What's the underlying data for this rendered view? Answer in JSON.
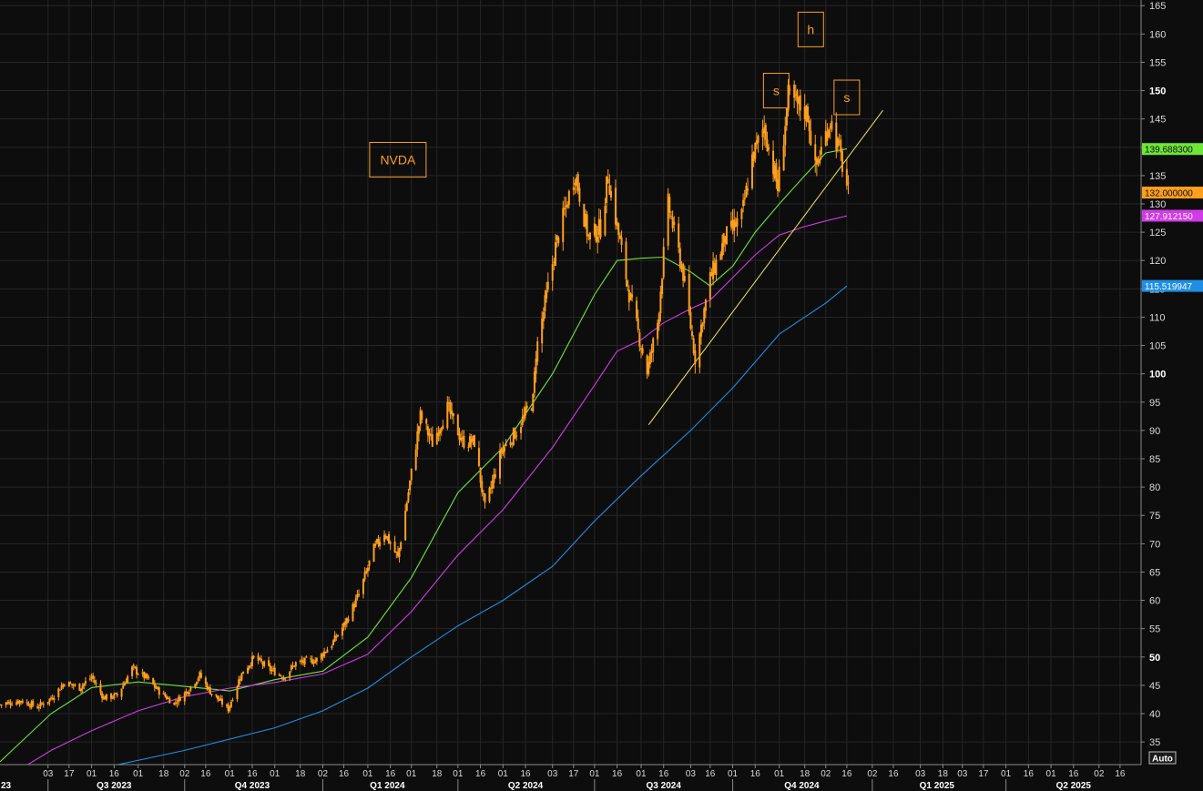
{
  "chart_data": {
    "type": "candlestick",
    "symbol_label": "NVDA",
    "colors": {
      "background": "#0d0d0d",
      "grid": "#262626",
      "candles": "#ff9f1c",
      "ma_short": "#6ee636",
      "ma_mid": "#d23be8",
      "ma_long": "#1f8fe6",
      "trendline": "#f2e85a",
      "annotations": "#ff9f1c"
    },
    "y_axis": {
      "range": [
        31,
        166
      ],
      "ticks": [
        "165",
        "160",
        "155",
        "150",
        "145",
        "140",
        "135",
        "130",
        "125",
        "120",
        "115",
        "110",
        "105",
        "100",
        "95",
        "90",
        "85",
        "80",
        "75",
        "70",
        "65",
        "60",
        "55",
        "50",
        "45",
        "40",
        "35"
      ],
      "bold_ticks": [
        "150",
        "100",
        "50"
      ]
    },
    "x_axis": {
      "range": [
        "2023-06-01",
        "2025-06-30"
      ],
      "tick_labels": [
        {
          "label": "03",
          "date": "2023-07-03"
        },
        {
          "label": "17",
          "date": "2023-07-17"
        },
        {
          "label": "01",
          "date": "2023-08-01"
        },
        {
          "label": "16",
          "date": "2023-08-16"
        },
        {
          "label": "01",
          "date": "2023-09-01"
        },
        {
          "label": "18",
          "date": "2023-09-18"
        },
        {
          "label": "02",
          "date": "2023-10-02"
        },
        {
          "label": "16",
          "date": "2023-10-16"
        },
        {
          "label": "01",
          "date": "2023-11-01"
        },
        {
          "label": "16",
          "date": "2023-11-16"
        },
        {
          "label": "01",
          "date": "2023-12-01"
        },
        {
          "label": "18",
          "date": "2023-12-18"
        },
        {
          "label": "02",
          "date": "2024-01-02"
        },
        {
          "label": "16",
          "date": "2024-01-16"
        },
        {
          "label": "01",
          "date": "2024-02-01"
        },
        {
          "label": "16",
          "date": "2024-02-16"
        },
        {
          "label": "01",
          "date": "2024-03-01"
        },
        {
          "label": "18",
          "date": "2024-03-18"
        },
        {
          "label": "01",
          "date": "2024-04-01"
        },
        {
          "label": "16",
          "date": "2024-04-16"
        },
        {
          "label": "01",
          "date": "2024-05-01"
        },
        {
          "label": "16",
          "date": "2024-05-16"
        },
        {
          "label": "03",
          "date": "2024-06-03"
        },
        {
          "label": "17",
          "date": "2024-06-17"
        },
        {
          "label": "01",
          "date": "2024-07-01"
        },
        {
          "label": "16",
          "date": "2024-07-16"
        },
        {
          "label": "01",
          "date": "2024-08-01"
        },
        {
          "label": "16",
          "date": "2024-08-16"
        },
        {
          "label": "03",
          "date": "2024-09-03"
        },
        {
          "label": "16",
          "date": "2024-09-16"
        },
        {
          "label": "01",
          "date": "2024-10-01"
        },
        {
          "label": "16",
          "date": "2024-10-16"
        },
        {
          "label": "01",
          "date": "2024-11-01"
        },
        {
          "label": "18",
          "date": "2024-11-18"
        },
        {
          "label": "02",
          "date": "2024-12-02"
        },
        {
          "label": "16",
          "date": "2024-12-16"
        },
        {
          "label": "02",
          "date": "2025-01-02"
        },
        {
          "label": "16",
          "date": "2025-01-16"
        },
        {
          "label": "03",
          "date": "2025-02-03"
        },
        {
          "label": "18",
          "date": "2025-02-18"
        },
        {
          "label": "03",
          "date": "2025-03-03"
        },
        {
          "label": "17",
          "date": "2025-03-17"
        },
        {
          "label": "01",
          "date": "2025-04-01"
        },
        {
          "label": "16",
          "date": "2025-04-16"
        },
        {
          "label": "01",
          "date": "2025-05-01"
        },
        {
          "label": "16",
          "date": "2025-05-16"
        },
        {
          "label": "02",
          "date": "2025-06-02"
        },
        {
          "label": "16",
          "date": "2025-06-16"
        }
      ],
      "quarter_labels": [
        {
          "label": "Q3 2023",
          "date": "2023-08-16"
        },
        {
          "label": "Q4 2023",
          "date": "2023-11-16"
        },
        {
          "label": "Q1 2024",
          "date": "2024-02-14"
        },
        {
          "label": "Q2 2024",
          "date": "2024-05-16"
        },
        {
          "label": "Q3 2024",
          "date": "2024-08-16"
        },
        {
          "label": "Q4 2024",
          "date": "2024-11-16"
        },
        {
          "label": "Q1 2025",
          "date": "2025-02-14"
        },
        {
          "label": "Q2 2025",
          "date": "2025-05-16"
        }
      ],
      "left_clipped_label": "23"
    },
    "price_path": [
      [
        "2023-06-01",
        41.6
      ],
      [
        "2023-06-15",
        42.3
      ],
      [
        "2023-06-26",
        41.2
      ],
      [
        "2023-07-05",
        42.7
      ],
      [
        "2023-07-14",
        45.5
      ],
      [
        "2023-07-24",
        44.6
      ],
      [
        "2023-08-01",
        46.5
      ],
      [
        "2023-08-09",
        42.8
      ],
      [
        "2023-08-18",
        43.2
      ],
      [
        "2023-08-28",
        48.0
      ],
      [
        "2023-09-07",
        46.2
      ],
      [
        "2023-09-15",
        43.9
      ],
      [
        "2023-09-25",
        41.8
      ],
      [
        "2023-10-04",
        44.1
      ],
      [
        "2023-10-12",
        46.8
      ],
      [
        "2023-10-19",
        43.9
      ],
      [
        "2023-10-31",
        40.8
      ],
      [
        "2023-11-08",
        46.6
      ],
      [
        "2023-11-17",
        49.9
      ],
      [
        "2023-11-28",
        47.8
      ],
      [
        "2023-12-07",
        46.5
      ],
      [
        "2023-12-15",
        48.9
      ],
      [
        "2023-12-29",
        49.5
      ],
      [
        "2024-01-08",
        52.3
      ],
      [
        "2024-01-17",
        56.0
      ],
      [
        "2024-01-26",
        61.0
      ],
      [
        "2024-02-05",
        69.0
      ],
      [
        "2024-02-12",
        72.1
      ],
      [
        "2024-02-21",
        67.5
      ],
      [
        "2024-02-28",
        79.1
      ],
      [
        "2024-03-07",
        92.6
      ],
      [
        "2024-03-15",
        87.8
      ],
      [
        "2024-03-25",
        94.0
      ],
      [
        "2024-04-04",
        88.0
      ],
      [
        "2024-04-12",
        88.0
      ],
      [
        "2024-04-19",
        76.2
      ],
      [
        "2024-04-30",
        86.4
      ],
      [
        "2024-05-10",
        89.9
      ],
      [
        "2024-05-21",
        95.4
      ],
      [
        "2024-05-23",
        103.8
      ],
      [
        "2024-06-05",
        122.4
      ],
      [
        "2024-06-18",
        135.6
      ],
      [
        "2024-06-27",
        123.9
      ],
      [
        "2024-07-05",
        125.8
      ],
      [
        "2024-07-10",
        134.9
      ],
      [
        "2024-07-24",
        114.2
      ],
      [
        "2024-08-05",
        100.4
      ],
      [
        "2024-08-12",
        109.0
      ],
      [
        "2024-08-19",
        130.0
      ],
      [
        "2024-08-29",
        117.6
      ],
      [
        "2024-09-06",
        102.8
      ],
      [
        "2024-09-16",
        116.8
      ],
      [
        "2024-09-26",
        124.0
      ],
      [
        "2024-10-07",
        127.7
      ],
      [
        "2024-10-14",
        138.1
      ],
      [
        "2024-10-22",
        143.6
      ],
      [
        "2024-10-31",
        132.8
      ],
      [
        "2024-11-07",
        148.9
      ],
      [
        "2024-11-20",
        145.9
      ],
      [
        "2024-11-25",
        136.0
      ],
      [
        "2024-12-05",
        145.0
      ],
      [
        "2024-12-11",
        139.3
      ],
      [
        "2024-12-17",
        132.0
      ]
    ],
    "moving_averages": [
      {
        "value_label": "139.688300",
        "color": "#6ee636",
        "points": [
          [
            "2023-06-01",
            31.5
          ],
          [
            "2023-07-05",
            40.0
          ],
          [
            "2023-08-01",
            44.6
          ],
          [
            "2023-09-01",
            45.6
          ],
          [
            "2023-10-02",
            44.8
          ],
          [
            "2023-11-01",
            44.0
          ],
          [
            "2023-12-01",
            46.0
          ],
          [
            "2024-01-02",
            47.5
          ],
          [
            "2024-02-01",
            53.5
          ],
          [
            "2024-03-01",
            64.0
          ],
          [
            "2024-04-01",
            79.0
          ],
          [
            "2024-05-01",
            87.0
          ],
          [
            "2024-06-03",
            100.0
          ],
          [
            "2024-07-01",
            114.0
          ],
          [
            "2024-07-16",
            120.0
          ],
          [
            "2024-08-01",
            120.4
          ],
          [
            "2024-08-16",
            120.6
          ],
          [
            "2024-09-03",
            118.0
          ],
          [
            "2024-09-16",
            115.5
          ],
          [
            "2024-10-01",
            119.0
          ],
          [
            "2024-10-16",
            125.0
          ],
          [
            "2024-11-01",
            130.0
          ],
          [
            "2024-11-18",
            135.0
          ],
          [
            "2024-12-02",
            139.0
          ],
          [
            "2024-12-16",
            139.7
          ]
        ]
      },
      {
        "value_label": "127.912150",
        "color": "#d23be8",
        "points": [
          [
            "2023-06-01",
            28.0
          ],
          [
            "2023-07-05",
            33.5
          ],
          [
            "2023-08-01",
            37.0
          ],
          [
            "2023-09-01",
            40.5
          ],
          [
            "2023-10-02",
            43.0
          ],
          [
            "2023-11-01",
            44.5
          ],
          [
            "2023-12-01",
            45.5
          ],
          [
            "2024-01-02",
            47.0
          ],
          [
            "2024-02-01",
            50.5
          ],
          [
            "2024-03-01",
            58.0
          ],
          [
            "2024-04-01",
            68.0
          ],
          [
            "2024-05-01",
            76.0
          ],
          [
            "2024-06-03",
            87.0
          ],
          [
            "2024-07-01",
            98.0
          ],
          [
            "2024-07-16",
            104.0
          ],
          [
            "2024-08-01",
            106.0
          ],
          [
            "2024-08-16",
            109.0
          ],
          [
            "2024-09-03",
            111.5
          ],
          [
            "2024-09-16",
            113.0
          ],
          [
            "2024-10-01",
            117.0
          ],
          [
            "2024-10-16",
            121.0
          ],
          [
            "2024-11-01",
            124.5
          ],
          [
            "2024-11-18",
            126.0
          ],
          [
            "2024-12-02",
            127.0
          ],
          [
            "2024-12-16",
            127.9
          ]
        ]
      },
      {
        "value_label": "115.519947",
        "color": "#1f8fe6",
        "points": [
          [
            "2023-06-01",
            26.0
          ],
          [
            "2023-08-01",
            30.0
          ],
          [
            "2023-10-02",
            33.5
          ],
          [
            "2023-12-01",
            37.5
          ],
          [
            "2024-01-02",
            40.5
          ],
          [
            "2024-02-01",
            44.5
          ],
          [
            "2024-03-01",
            50.0
          ],
          [
            "2024-04-01",
            55.5
          ],
          [
            "2024-05-01",
            60.0
          ],
          [
            "2024-06-03",
            66.0
          ],
          [
            "2024-07-01",
            74.0
          ],
          [
            "2024-08-01",
            82.0
          ],
          [
            "2024-09-03",
            90.0
          ],
          [
            "2024-10-01",
            97.5
          ],
          [
            "2024-11-01",
            107.0
          ],
          [
            "2024-12-02",
            112.5
          ],
          [
            "2024-12-16",
            115.5
          ]
        ]
      }
    ],
    "last_price_label": "132.000000",
    "trendline": {
      "from": [
        "2024-08-06",
        91.0
      ],
      "to": [
        "2025-01-09",
        146.5
      ]
    },
    "annotations": [
      {
        "text": "NVDA",
        "date": "2024-02-21",
        "value": 137.8
      },
      {
        "text": "s",
        "date": "2024-10-30",
        "value": 150.0
      },
      {
        "text": "h",
        "date": "2024-11-22",
        "value": 160.8
      },
      {
        "text": "s",
        "date": "2024-12-16",
        "value": 148.8
      }
    ],
    "auto_label": "Auto"
  }
}
